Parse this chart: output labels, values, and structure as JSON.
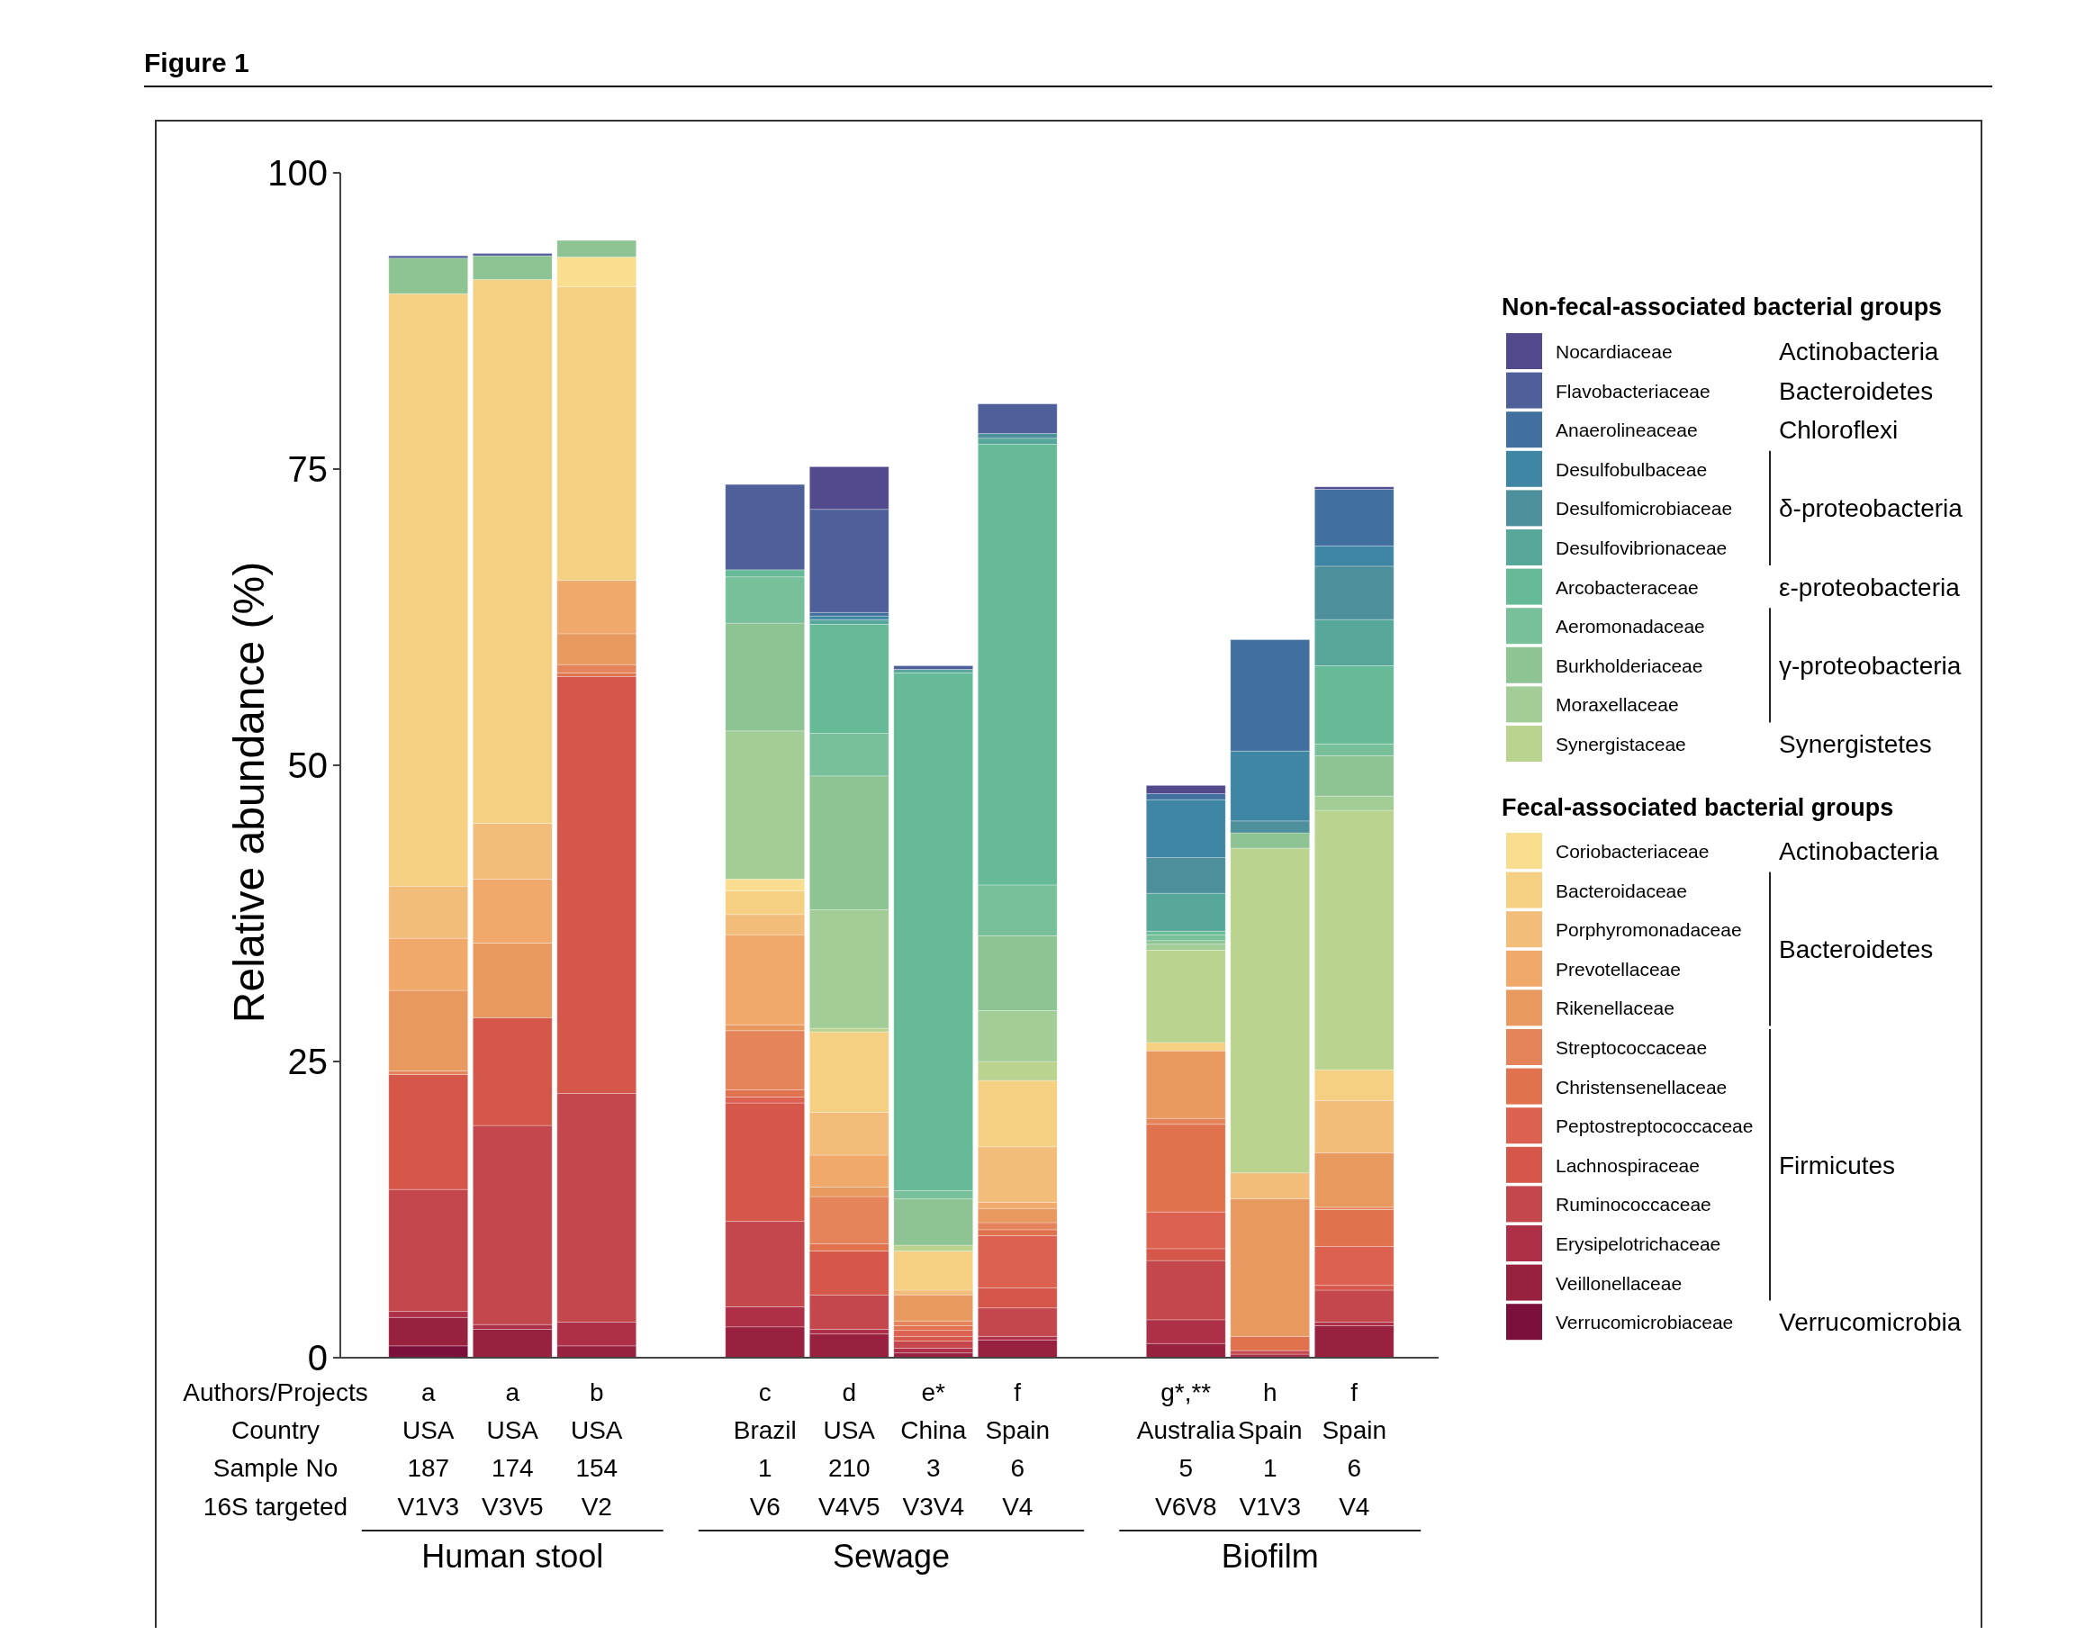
{
  "chart_data": {
    "type": "bar",
    "stacked": true,
    "title": "Figure 1",
    "ylabel": "Relative abundance (%)",
    "xlabel": "Authors/Projects\nCountry\nSample No\n16S targeted",
    "legend_title": "Non-fecal-associated bacterial groups",
    "legend": "right",
    "ylim": [
      0,
      100
    ],
    "yticks": [
      0,
      25,
      50,
      75,
      100
    ],
    "categories": [
      "a\nUSA\n187\nV1V3",
      "a\nUSA\n174\nV3V5",
      "b\nUSA\n154\nV2",
      null,
      "c\nBrazil\n1\nV6",
      "d\nUSA\n210\nV4V5",
      "e*\nChina\n3\nV3V4",
      "f\nSpain\n6\nV4",
      null,
      "g*,**\nAustralia\n5\nV6V8",
      "h\nSpain\n1\nV1V3",
      "f\nSpain\n6\nV4"
    ],
    "annotations": [
      "Human stool",
      "Sewage",
      "Biofilm",
      "Fecal-associated bacterial groups",
      "Actinobacteria",
      "Bacteroidetes",
      "Chloroflexi",
      "δ-proteobacteria",
      "ε-proteobacteria",
      "γ-proteobacteria",
      "Synergistetes",
      "Actinobacteria",
      "Bacteroidetes",
      "Firmicutes",
      "Verrucomicrobia"
    ],
    "series": [
      {
        "name": "Verrucomicrobiaceae",
        "color": "#7c103c",
        "values": [
          1.0,
          null,
          null,
          null,
          null,
          null,
          null,
          null,
          null,
          null,
          null,
          null
        ]
      },
      {
        "name": "Veillonellaceae",
        "color": "#98213f",
        "values": [
          2.4,
          2.4,
          1.0,
          null,
          2.6,
          2.0,
          0.4,
          1.5,
          null,
          1.2,
          null,
          2.7
        ]
      },
      {
        "name": "Erysipelotrichaceae",
        "color": "#ae2f48",
        "values": [
          0.5,
          0.4,
          2.0,
          null,
          1.7,
          0.4,
          0.4,
          0.3,
          null,
          2.0,
          0.3,
          0.3
        ]
      },
      {
        "name": "Ruminococcaceae",
        "color": "#c4474d",
        "values": [
          10.3,
          16.8,
          19.3,
          null,
          7.2,
          2.9,
          0.6,
          2.4,
          null,
          5.0,
          0.3,
          2.7
        ]
      },
      {
        "name": "Lachnospiraceae",
        "color": "#d4574a",
        "values": [
          9.7,
          9.1,
          35.2,
          null,
          10.0,
          3.7,
          0.4,
          1.7,
          null,
          1.0,
          null,
          0.4
        ]
      },
      {
        "name": "Peptostreptococcaceae",
        "color": "#dc6150",
        "values": [
          null,
          null,
          null,
          null,
          0.5,
          null,
          0.5,
          4.4,
          null,
          3.1,
          null,
          3.3
        ]
      },
      {
        "name": "Christensenellaceae",
        "color": "#e0724d",
        "values": [
          null,
          null,
          0.3,
          null,
          0.6,
          0.6,
          0.4,
          0.5,
          null,
          7.4,
          1.2,
          3.1
        ]
      },
      {
        "name": "Streptococcaceae",
        "color": "#e5845a",
        "values": [
          0.3,
          null,
          0.7,
          null,
          5.0,
          4.0,
          0.4,
          0.6,
          null,
          0.5,
          null,
          0.2
        ]
      },
      {
        "name": "Rikenellaceae",
        "color": "#e89960",
        "values": [
          6.8,
          6.3,
          2.6,
          null,
          0.5,
          0.8,
          2.2,
          1.2,
          null,
          5.7,
          11.6,
          4.6
        ]
      },
      {
        "name": "Prevotellaceae",
        "color": "#f0a86b",
        "values": [
          4.4,
          5.4,
          4.5,
          null,
          7.6,
          2.7,
          null,
          0.5,
          null,
          null,
          null,
          null
        ]
      },
      {
        "name": "Porphyromonadaceae",
        "color": "#f2bc7a",
        "values": [
          4.4,
          4.7,
          null,
          null,
          1.7,
          3.6,
          0.4,
          4.7,
          null,
          null,
          2.2,
          4.4
        ]
      },
      {
        "name": "Bacteroidaceae",
        "color": "#f5cf82",
        "values": [
          50.0,
          45.9,
          24.8,
          null,
          2.0,
          6.8,
          3.3,
          5.6,
          null,
          0.7,
          null,
          2.6
        ]
      },
      {
        "name": "Coriobacteriaceae",
        "color": "#f8de8e",
        "values": [
          null,
          null,
          2.5,
          null,
          1.0,
          null,
          null,
          null,
          null,
          null,
          null,
          null
        ]
      },
      {
        "name": "Synergistaceae",
        "color": "#bad38f",
        "values": [
          null,
          null,
          null,
          null,
          null,
          0.3,
          0.5,
          1.6,
          null,
          7.8,
          27.4,
          21.9
        ]
      },
      {
        "name": "Moraxellaceae",
        "color": "#a2cd96",
        "values": [
          null,
          null,
          null,
          null,
          12.5,
          10.0,
          null,
          4.3,
          null,
          0.5,
          null,
          1.2
        ]
      },
      {
        "name": "Burkholderiaceae",
        "color": "#8ec494",
        "values": [
          3.0,
          2.0,
          1.4,
          null,
          9.1,
          11.3,
          3.9,
          6.3,
          null,
          0.3,
          1.3,
          3.4
        ]
      },
      {
        "name": "Aeromonadaceae",
        "color": "#77c09a",
        "values": [
          null,
          null,
          null,
          null,
          3.9,
          3.6,
          0.7,
          4.3,
          null,
          0.5,
          null,
          1.0
        ]
      },
      {
        "name": "Arcobacteraceae",
        "color": "#66ba98",
        "values": [
          null,
          null,
          null,
          null,
          0.6,
          9.2,
          43.7,
          37.2,
          null,
          0.3,
          null,
          6.6
        ]
      },
      {
        "name": "Desulfovibrionaceae",
        "color": "#57a89a",
        "values": [
          null,
          null,
          null,
          null,
          null,
          0.4,
          0.3,
          0.5,
          null,
          3.2,
          null,
          3.9
        ]
      },
      {
        "name": "Desulfomicrobiaceae",
        "color": "#4d8f9a",
        "values": [
          null,
          null,
          null,
          null,
          null,
          null,
          null,
          0.4,
          null,
          3.0,
          1.0,
          4.5
        ]
      },
      {
        "name": "Desulfobulbaceae",
        "color": "#3e86a3",
        "values": [
          null,
          null,
          null,
          null,
          null,
          0.3,
          null,
          null,
          null,
          4.9,
          5.9,
          1.7
        ]
      },
      {
        "name": "Anaerolineaceae",
        "color": "#41709f",
        "values": [
          null,
          null,
          null,
          null,
          null,
          0.3,
          null,
          null,
          null,
          0.5,
          9.4,
          4.8
        ]
      },
      {
        "name": "Flavobacteriaceae",
        "color": "#4e5f9a",
        "values": [
          0.2,
          0.2,
          null,
          null,
          7.2,
          8.7,
          0.3,
          2.5,
          null,
          null,
          null,
          null
        ]
      },
      {
        "name": "Nocardiaceae",
        "color": "#524a8c",
        "values": [
          null,
          null,
          null,
          null,
          null,
          3.6,
          null,
          null,
          null,
          0.7,
          null,
          0.2
        ]
      }
    ]
  }
}
